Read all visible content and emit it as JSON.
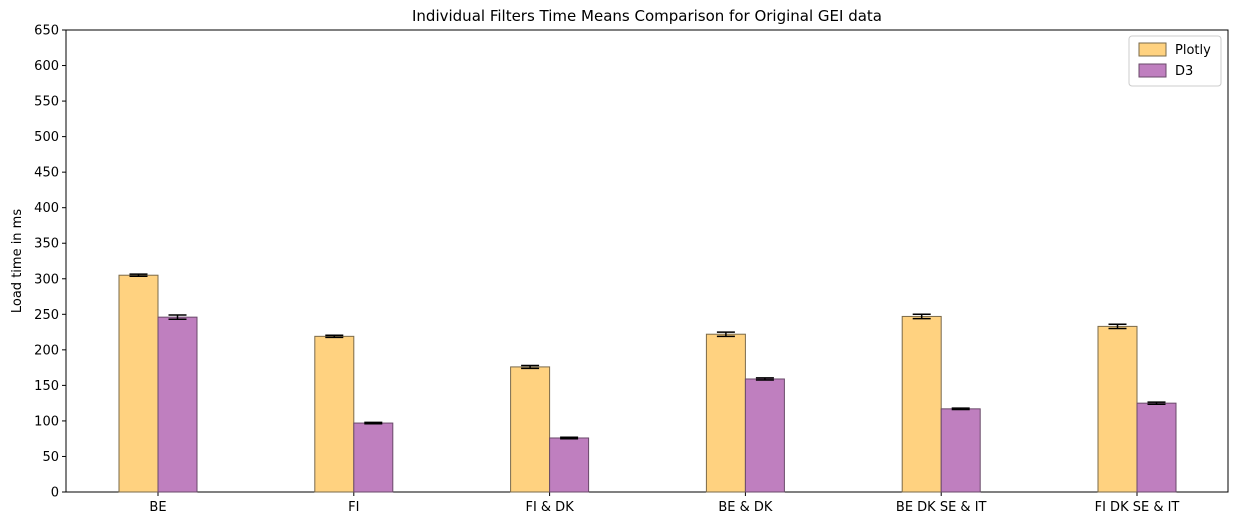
{
  "chart_data": {
    "type": "bar",
    "title": "Individual Filters Time Means Comparison for Original GEI data",
    "xlabel": "",
    "ylabel": "Load time in ms",
    "ylim": [
      0,
      650
    ],
    "yticks": [
      0,
      50,
      100,
      150,
      200,
      250,
      300,
      350,
      400,
      450,
      500,
      550,
      600,
      650
    ],
    "categories": [
      "BE",
      "FI",
      "FI & DK",
      "BE & DK",
      "BE DK SE & IT",
      "FI DK SE & IT"
    ],
    "series": [
      {
        "name": "Plotly",
        "color": "#ffd280",
        "edge_color": "#7a6a4a",
        "values": [
          305,
          219,
          176,
          222,
          247,
          233
        ],
        "errors": [
          1.5,
          1.5,
          2,
          3,
          3,
          3
        ]
      },
      {
        "name": "D3",
        "color": "#bf7fbf",
        "edge_color": "#6a4a6a",
        "values": [
          246,
          97,
          76,
          159,
          117,
          125
        ],
        "errors": [
          3,
          1,
          1,
          1.5,
          1,
          1.5
        ]
      }
    ],
    "grid": false,
    "legend_position": "top-right"
  }
}
